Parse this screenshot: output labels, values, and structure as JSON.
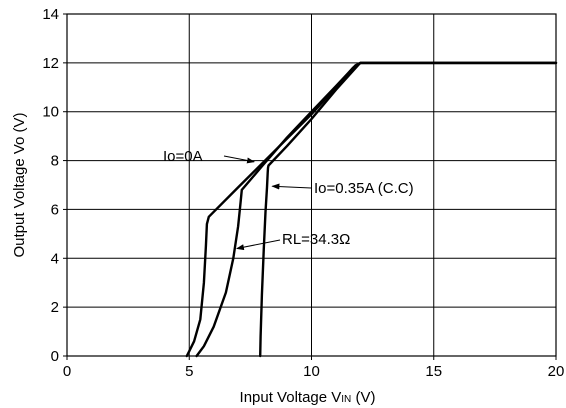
{
  "chart_data": {
    "type": "line",
    "xlabel_main": "Input Voltage V",
    "xlabel_sub": "IN",
    "xlabel_unit": " (V)",
    "ylabel": "Output Voltage Vo (V)",
    "xlim": [
      0,
      20
    ],
    "ylim": [
      0,
      14
    ],
    "x_ticks": [
      "0",
      "5",
      "10",
      "15",
      "20"
    ],
    "y_ticks": [
      "0",
      "2",
      "4",
      "6",
      "8",
      "10",
      "12",
      "14"
    ],
    "grid": true,
    "series": [
      {
        "name": "Io=0A",
        "x": [
          4.9,
          5.0,
          5.2,
          5.45,
          5.6,
          5.68,
          5.72,
          5.8,
          7.0,
          8.5,
          10.0,
          11.0,
          11.7,
          12.0,
          14.0,
          16.0,
          18.0,
          20.0
        ],
        "y": [
          0.0,
          0.2,
          0.6,
          1.5,
          3.0,
          4.5,
          5.4,
          5.7,
          6.9,
          8.4,
          9.9,
          11.0,
          11.8,
          12.0,
          12.0,
          12.0,
          12.0,
          12.0
        ]
      },
      {
        "name": "RL=34.3Ω",
        "x": [
          5.3,
          5.6,
          6.0,
          6.5,
          6.8,
          7.0,
          7.1,
          7.15,
          8.0,
          9.0,
          10.0,
          11.0,
          11.8,
          12.0,
          14.0,
          16.0,
          18.0,
          20.0
        ],
        "y": [
          0.0,
          0.4,
          1.2,
          2.6,
          4.0,
          5.3,
          6.3,
          6.8,
          7.8,
          8.95,
          10.0,
          11.05,
          11.9,
          12.0,
          12.0,
          12.0,
          12.0,
          12.0
        ]
      },
      {
        "name": "Io=0.35A (C.C)",
        "x": [
          7.9,
          7.92,
          7.97,
          8.05,
          8.12,
          8.18,
          8.21,
          8.22,
          8.24,
          9.0,
          10.0,
          11.0,
          11.9,
          12.0,
          14.0,
          16.0,
          18.0,
          20.0
        ],
        "y": [
          0.0,
          0.8,
          2.5,
          4.4,
          5.9,
          6.9,
          7.5,
          7.7,
          7.8,
          8.6,
          9.7,
          10.9,
          11.9,
          12.0,
          12.0,
          12.0,
          12.0,
          12.0
        ]
      }
    ],
    "annotations": [
      {
        "text": "Io=0A",
        "point": [
          7.65,
          7.95
        ]
      },
      {
        "text": "Io=0.35A (C.C)",
        "point": [
          8.4,
          6.95
        ]
      },
      {
        "text": "RL=34.3Ω",
        "point": [
          6.95,
          4.4
        ]
      }
    ]
  }
}
